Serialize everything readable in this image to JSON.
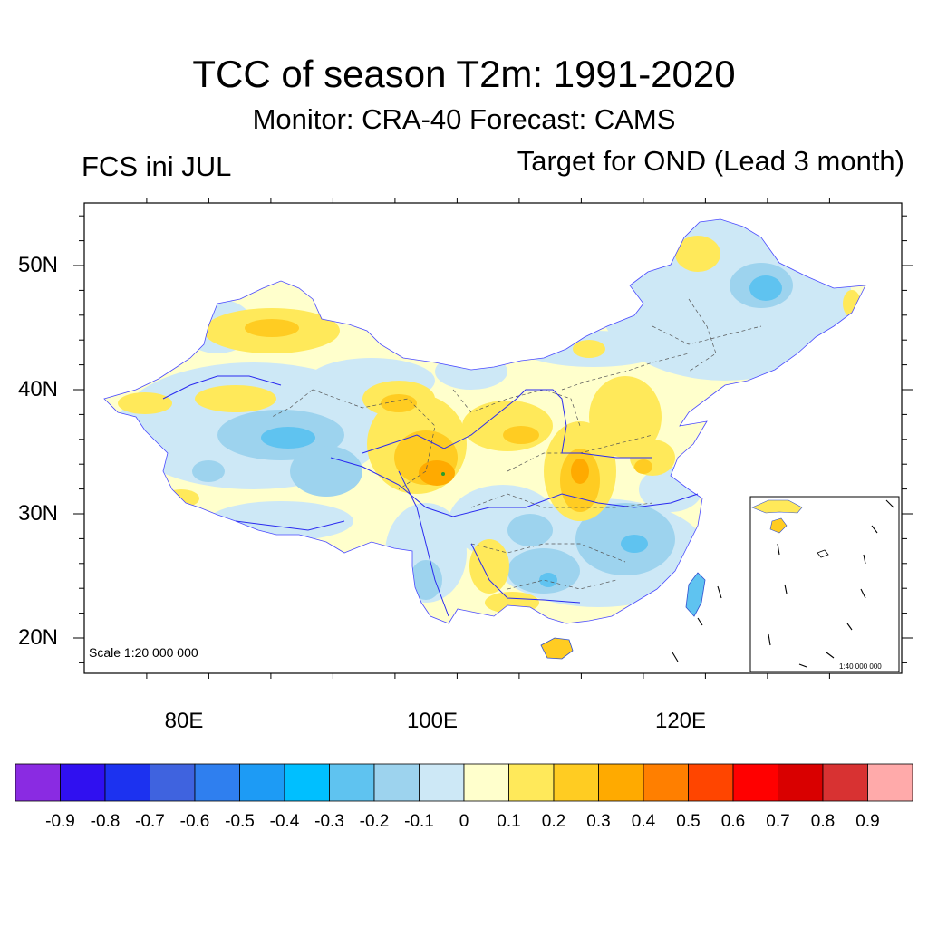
{
  "title": "TCC of season T2m: 1991-2020",
  "subtitle": "Monitor: CRA-40   Forecast: CAMS",
  "left_label": "FCS ini JUL",
  "right_label": "Target for OND (Lead 3 month)",
  "scale_main": "Scale 1:20 000 000",
  "scale_inset": "1:40 000 000",
  "axes": {
    "y_ticks": [
      {
        "value": 50,
        "label": "50N"
      },
      {
        "value": 40,
        "label": "40N"
      },
      {
        "value": 30,
        "label": "30N"
      },
      {
        "value": 20,
        "label": "20N"
      }
    ],
    "x_ticks": [
      {
        "value": 80,
        "label": "80E"
      },
      {
        "value": 100,
        "label": "100E"
      },
      {
        "value": 120,
        "label": "120E"
      }
    ]
  },
  "colorbar": {
    "colors": [
      "#8a2be2",
      "#3010f0",
      "#1c32f0",
      "#3f63df",
      "#2f7fef",
      "#1d9bf5",
      "#00bfff",
      "#5fc3f0",
      "#9dd3ee",
      "#cde8f6",
      "#ffffcc",
      "#ffe95a",
      "#ffcc22",
      "#ffaa00",
      "#ff7f00",
      "#ff4500",
      "#ff0000",
      "#d90000",
      "#d83232",
      "#ffaaaa"
    ],
    "labels": [
      "-0.9",
      "-0.8",
      "-0.7",
      "-0.6",
      "-0.5",
      "-0.4",
      "-0.3",
      "-0.2",
      "-0.1",
      "0",
      "0.1",
      "0.2",
      "0.3",
      "0.4",
      "0.5",
      "0.6",
      "0.7",
      "0.8",
      "0.9"
    ]
  }
}
